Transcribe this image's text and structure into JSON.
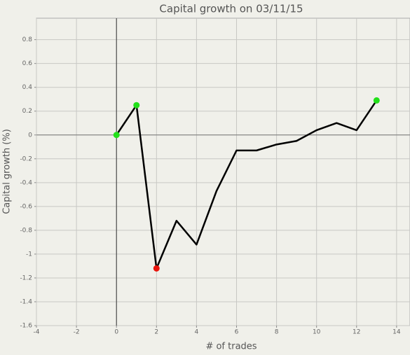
{
  "chart_data": {
    "type": "line",
    "title": "Capital growth on 03/11/15",
    "x_label": "# of trades",
    "y_label": "Capital growth (%)",
    "x": [
      0,
      1,
      2,
      3,
      4,
      5,
      6,
      7,
      8,
      9,
      10,
      11,
      12,
      13
    ],
    "series": [
      {
        "color": "#000000",
        "values": [
          0,
          0.25,
          -1.12,
          -0.72,
          -0.92,
          -0.47,
          -0.13,
          -0.13,
          -0.08,
          -0.05,
          0.04,
          0.1,
          0.04,
          0.29
        ],
        "marker_colors": [
          "#22e01a",
          "#22e01a",
          "#e8140c",
          null,
          null,
          null,
          null,
          null,
          null,
          null,
          null,
          null,
          null,
          "#22e01a"
        ]
      }
    ],
    "xlim": [
      -4,
      14.67
    ],
    "ylim": [
      -1.6,
      0.98
    ],
    "xticks": [
      -4,
      -2,
      0,
      2,
      4,
      6,
      8,
      10,
      12,
      14
    ],
    "yticks": [
      -1.6,
      -1.4,
      -1.2,
      -1,
      -0.8,
      -0.6,
      -0.4,
      -0.2,
      0,
      0.2,
      0.4,
      0.6,
      0.8
    ],
    "grid": true
  }
}
